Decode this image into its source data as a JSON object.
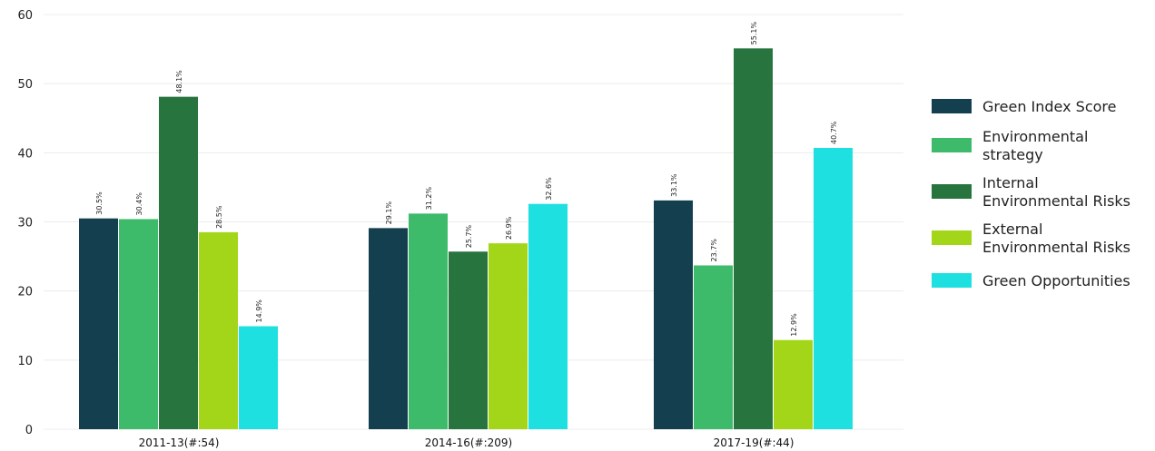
{
  "chart_data": {
    "type": "bar",
    "categories": [
      "2011-13(#:54)",
      "2014-16(#:209)",
      "2017-19(#:44)"
    ],
    "series": [
      {
        "name": "Green Index Score",
        "color": "#143f4f",
        "values": [
          30.5,
          29.1,
          33.1
        ],
        "labels": [
          "30.5%",
          "29.1%",
          "33.1%"
        ]
      },
      {
        "name": "Environmental strategy",
        "color": "#3dba6a",
        "values": [
          30.4,
          31.2,
          23.7
        ],
        "labels": [
          "30.4%",
          "31.2%",
          "23.7%"
        ]
      },
      {
        "name": "Internal Environmental Risks",
        "color": "#28743f",
        "values": [
          48.1,
          25.7,
          55.1
        ],
        "labels": [
          "48.1%",
          "25.7%",
          "55.1%"
        ]
      },
      {
        "name": "External Environmental Risks",
        "color": "#a3d619",
        "values": [
          28.5,
          26.9,
          12.9
        ],
        "labels": [
          "28.5%",
          "26.9%",
          "12.9%"
        ]
      },
      {
        "name": "Green Opportunities",
        "color": "#1ee0e0",
        "values": [
          14.9,
          32.6,
          40.7
        ],
        "labels": [
          "14.9%",
          "32.6%",
          "40.7%"
        ]
      }
    ],
    "legend_lines": [
      [
        "Green Index Score"
      ],
      [
        "Environmental",
        "strategy"
      ],
      [
        "Internal",
        "Environmental Risks"
      ],
      [
        "External",
        "Environmental Risks"
      ],
      [
        "Green Opportunities"
      ]
    ],
    "ylim": [
      0,
      60
    ],
    "yticks": [
      0,
      10,
      20,
      30,
      40,
      50,
      60
    ],
    "grid": true,
    "legend_position": "right",
    "title": "",
    "xlabel": "",
    "ylabel": ""
  }
}
